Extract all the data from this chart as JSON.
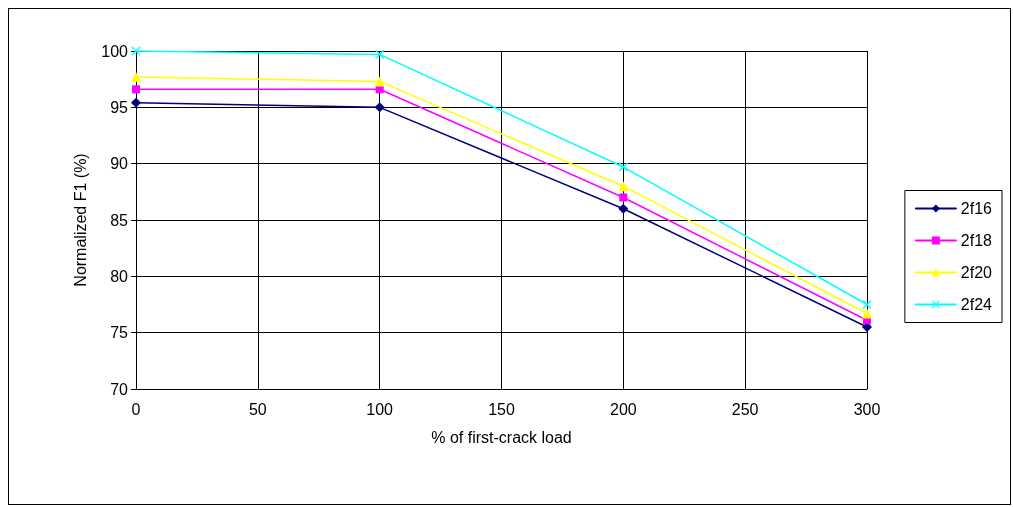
{
  "chart_data": {
    "type": "line",
    "xlabel": "% of first-crack load",
    "ylabel": "Normalized F1 (%)",
    "x": [
      0,
      100,
      200,
      300
    ],
    "series": [
      {
        "name": "2f16",
        "color": "#000080",
        "marker": "diamond",
        "values": [
          95.4,
          95.0,
          86.0,
          75.5
        ]
      },
      {
        "name": "2f18",
        "color": "#ff00ff",
        "marker": "square",
        "values": [
          96.6,
          96.6,
          87.0,
          76.1
        ]
      },
      {
        "name": "2f20",
        "color": "#ffff00",
        "marker": "triangle",
        "values": [
          97.7,
          97.3,
          88.0,
          76.7
        ]
      },
      {
        "name": "2f24",
        "color": "#00ffff",
        "marker": "cross",
        "values": [
          100.0,
          99.7,
          89.7,
          77.5
        ]
      }
    ],
    "xlim": [
      0,
      300
    ],
    "xticks": [
      0,
      50,
      100,
      150,
      200,
      250,
      300
    ],
    "ylim": [
      70,
      100
    ],
    "yticks": [
      70,
      75,
      80,
      85,
      90,
      95,
      100
    ],
    "grid": true,
    "legend": "right",
    "line_style": "solid"
  }
}
